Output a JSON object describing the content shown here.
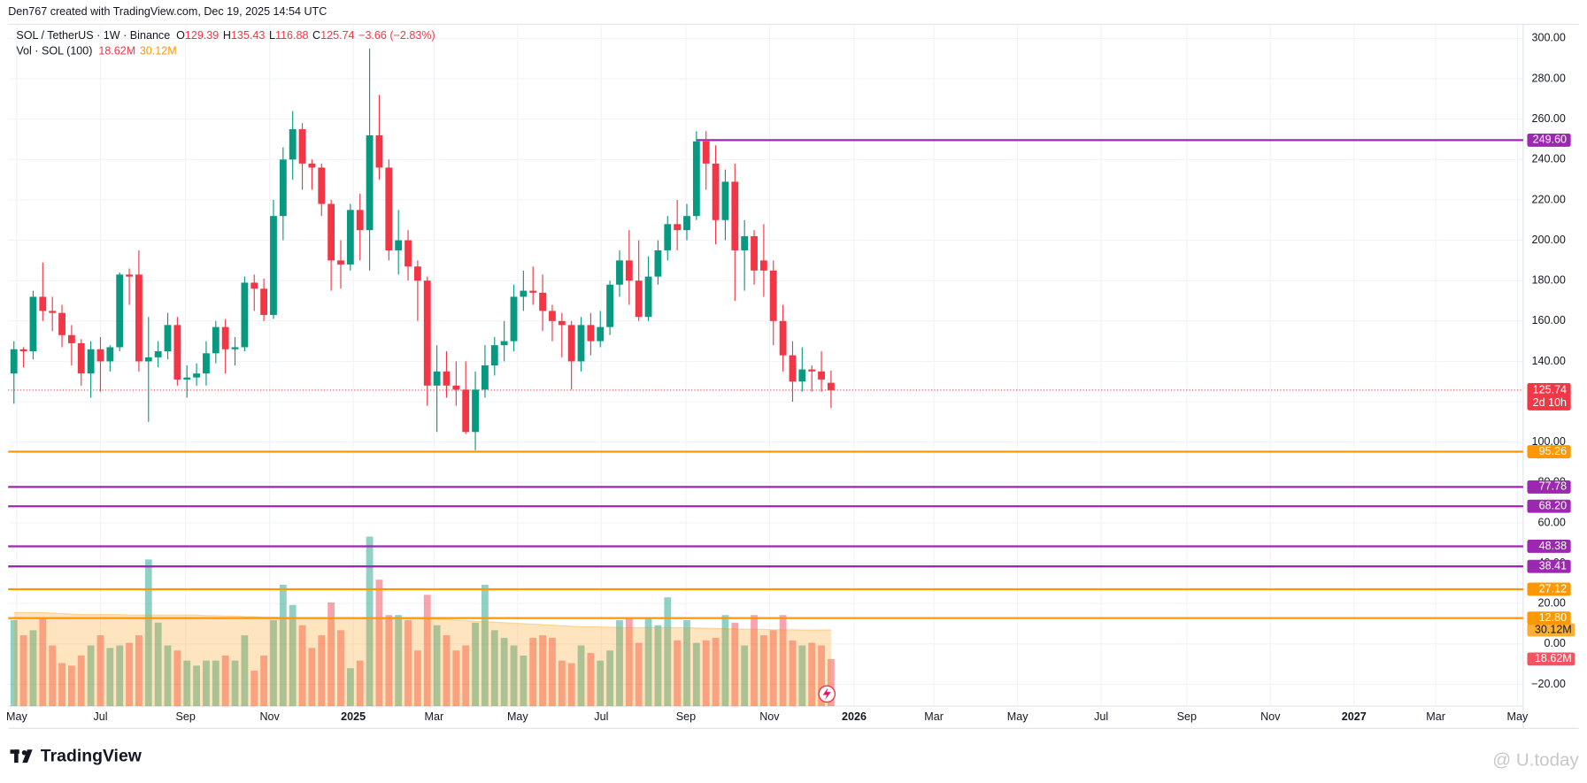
{
  "chart_data": {
    "type": "candlestick",
    "credit": "Den767 created with TradingView.com, Dec 19, 2025 14:54 UTC",
    "symbol": "SOL / TetherUS · 1W · Binance",
    "legend_keys": [
      "O",
      "H",
      "L",
      "C"
    ],
    "change": "−3.66 (−2.83%)",
    "volume_title": "Vol · SOL (100)",
    "volume_label": "18.62M",
    "volume_ma_label": "30.12M",
    "countdown": "2d 10h",
    "logo": "TradingView",
    "watermark": "@ U.today",
    "up_color": "#089981",
    "down_color": "#f23645",
    "ma_color": "#ff9800",
    "grid": true,
    "xlim": [
      -0.6,
      157
    ],
    "ylim": [
      -30.8,
      307
    ],
    "volume_ylim": [
      0,
      269.6
    ],
    "xticks": [
      {
        "value": 0.29,
        "label": "May"
      },
      {
        "value": 9,
        "label": "Jul"
      },
      {
        "value": 17.86,
        "label": "Sep"
      },
      {
        "value": 26.6,
        "label": "Nov"
      },
      {
        "value": 35.3,
        "label": "2025"
      },
      {
        "value": 43.7,
        "label": "Mar"
      },
      {
        "value": 52.4,
        "label": "May"
      },
      {
        "value": 61.1,
        "label": "Jul"
      },
      {
        "value": 69.9,
        "label": "Sep"
      },
      {
        "value": 78.6,
        "label": "Nov"
      },
      {
        "value": 87.4,
        "label": "2026"
      },
      {
        "value": 95.7,
        "label": "Mar"
      },
      {
        "value": 104.4,
        "label": "May"
      },
      {
        "value": 113.1,
        "label": "Jul"
      },
      {
        "value": 122,
        "label": "Sep"
      },
      {
        "value": 130.7,
        "label": "Nov"
      },
      {
        "value": 139.4,
        "label": "2027"
      },
      {
        "value": 147.9,
        "label": "Mar"
      },
      {
        "value": 156.4,
        "label": "May"
      }
    ],
    "yticks": [
      {
        "value": 300,
        "label": "300.00"
      },
      {
        "value": 280,
        "label": "280.00"
      },
      {
        "value": 260,
        "label": "260.00"
      },
      {
        "value": 240,
        "label": "240.00"
      },
      {
        "value": 220,
        "label": "220.00"
      },
      {
        "value": 200,
        "label": "200.00"
      },
      {
        "value": 180,
        "label": "180.00"
      },
      {
        "value": 160,
        "label": "160.00"
      },
      {
        "value": 140,
        "label": "140.00"
      },
      {
        "value": 120,
        "label": "120.00"
      },
      {
        "value": 100,
        "label": "100.00"
      },
      {
        "value": 80,
        "label": "80.00"
      },
      {
        "value": 60,
        "label": "60.00"
      },
      {
        "value": 40,
        "label": "40.00"
      },
      {
        "value": 20,
        "label": "20.00"
      },
      {
        "value": 0,
        "label": "0.00"
      },
      {
        "value": -20,
        "label": "−20.00"
      }
    ],
    "levels": [
      {
        "value": 249.6,
        "label": "249.60",
        "color": "#9c27b0",
        "start": 71
      },
      {
        "value": 95.26,
        "label": "95.26",
        "color": "#ff9800"
      },
      {
        "value": 77.78,
        "label": "77.78",
        "color": "#9c27b0"
      },
      {
        "value": 68.2,
        "label": "68.20",
        "color": "#9c27b0"
      },
      {
        "value": 48.38,
        "label": "48.38",
        "color": "#9c27b0"
      },
      {
        "value": 38.41,
        "label": "38.41",
        "color": "#9c27b0"
      },
      {
        "value": 27.12,
        "label": "27.12",
        "color": "#ff9800"
      },
      {
        "value": 12.8,
        "label": "12.80",
        "color": "#ff9800"
      }
    ],
    "ohlc": [
      [
        134,
        150,
        119,
        146
      ],
      [
        146,
        147,
        137,
        145
      ],
      [
        145,
        175,
        141,
        172
      ],
      [
        172,
        189,
        160,
        165
      ],
      [
        165,
        172,
        155,
        164
      ],
      [
        164,
        168,
        147,
        153
      ],
      [
        153,
        158,
        138,
        149
      ],
      [
        149,
        151,
        128,
        134
      ],
      [
        134,
        150,
        122,
        146
      ],
      [
        146,
        152,
        125,
        140
      ],
      [
        140,
        148,
        135,
        147
      ],
      [
        147,
        184,
        145,
        183
      ],
      [
        183,
        186,
        168,
        182
      ],
      [
        183,
        195,
        135,
        140
      ],
      [
        140,
        162,
        110,
        142
      ],
      [
        142,
        150,
        137,
        145
      ],
      [
        145,
        164,
        141,
        158
      ],
      [
        158,
        162,
        128,
        131
      ],
      [
        131,
        138,
        122,
        132
      ],
      [
        132,
        139,
        128,
        134
      ],
      [
        134,
        150,
        128,
        144
      ],
      [
        144,
        160,
        139,
        157
      ],
      [
        157,
        161,
        134,
        146
      ],
      [
        146,
        152,
        138,
        147
      ],
      [
        147,
        182,
        145,
        179
      ],
      [
        179,
        183,
        165,
        176
      ],
      [
        176,
        181,
        160,
        163
      ],
      [
        163,
        220,
        161,
        212
      ],
      [
        212,
        246,
        200,
        240
      ],
      [
        240,
        264,
        230,
        255
      ],
      [
        255,
        258,
        225,
        238
      ],
      [
        238,
        240,
        225,
        236
      ],
      [
        236,
        238,
        212,
        218
      ],
      [
        218,
        220,
        175,
        190
      ],
      [
        190,
        200,
        176,
        188
      ],
      [
        188,
        218,
        185,
        215
      ],
      [
        215,
        223,
        190,
        205
      ],
      [
        205,
        295,
        185,
        252
      ],
      [
        252,
        272,
        230,
        236
      ],
      [
        236,
        240,
        190,
        195
      ],
      [
        195,
        215,
        183,
        200
      ],
      [
        200,
        205,
        180,
        187
      ],
      [
        187,
        190,
        160,
        180
      ],
      [
        180,
        182,
        118,
        128
      ],
      [
        128,
        148,
        105,
        135
      ],
      [
        135,
        145,
        122,
        128
      ],
      [
        128,
        140,
        118,
        126
      ],
      [
        126,
        140,
        104,
        105
      ],
      [
        105,
        135,
        96,
        126
      ],
      [
        126,
        148,
        122,
        138
      ],
      [
        138,
        152,
        133,
        148
      ],
      [
        148,
        160,
        140,
        150
      ],
      [
        150,
        178,
        145,
        172
      ],
      [
        172,
        185,
        165,
        175
      ],
      [
        175,
        187,
        168,
        174
      ],
      [
        174,
        183,
        155,
        165
      ],
      [
        165,
        168,
        150,
        160
      ],
      [
        160,
        164,
        142,
        158
      ],
      [
        158,
        160,
        126,
        140
      ],
      [
        140,
        162,
        135,
        158
      ],
      [
        158,
        164,
        143,
        150
      ],
      [
        150,
        165,
        147,
        157
      ],
      [
        157,
        180,
        153,
        178
      ],
      [
        178,
        195,
        172,
        190
      ],
      [
        190,
        205,
        168,
        180
      ],
      [
        180,
        200,
        160,
        162
      ],
      [
        162,
        192,
        160,
        182
      ],
      [
        182,
        200,
        178,
        195
      ],
      [
        195,
        212,
        190,
        208
      ],
      [
        208,
        220,
        195,
        205
      ],
      [
        205,
        218,
        200,
        212
      ],
      [
        212,
        254,
        210,
        249
      ],
      [
        249,
        254,
        225,
        238
      ],
      [
        238,
        247,
        198,
        210
      ],
      [
        210,
        235,
        200,
        229
      ],
      [
        229,
        238,
        170,
        195
      ],
      [
        195,
        210,
        175,
        202
      ],
      [
        202,
        205,
        178,
        185
      ],
      [
        190,
        208,
        172,
        185
      ],
      [
        185,
        190,
        148,
        160
      ],
      [
        160,
        168,
        135,
        143
      ],
      [
        143,
        150,
        120,
        130
      ],
      [
        130,
        147,
        125,
        136
      ],
      [
        136,
        138,
        125,
        135
      ],
      [
        135,
        145,
        125,
        131
      ],
      [
        129.39,
        135.43,
        116.88,
        125.74
      ]
    ],
    "volume": [
      34,
      28,
      30,
      35,
      24,
      17,
      16,
      20,
      24,
      28,
      23,
      24,
      25,
      28,
      58,
      33,
      24,
      22,
      18,
      16,
      18,
      18,
      20,
      18,
      28,
      14,
      20,
      34,
      48,
      40,
      32,
      23,
      28,
      41,
      30,
      15,
      18,
      67,
      50,
      36,
      36,
      34,
      22,
      44,
      32,
      28,
      22,
      24,
      33,
      48,
      30,
      27,
      24,
      20,
      27,
      28,
      27,
      18,
      17,
      24,
      21,
      18,
      22,
      34,
      35,
      25,
      35,
      32,
      43,
      26,
      34,
      25,
      26,
      27,
      36,
      33,
      24,
      36,
      28,
      30,
      36,
      26,
      24,
      25,
      24,
      18.62
    ],
    "volume_ma": [
      37,
      37,
      37,
      37,
      36.8,
      36.6,
      36.4,
      36.2,
      36.2,
      36.2,
      36.2,
      36.2,
      36,
      36,
      36,
      36,
      36,
      36,
      36,
      36,
      35.8,
      35.8,
      35.6,
      35.6,
      35.4,
      35.4,
      35.2,
      35.2,
      35,
      35,
      35,
      35,
      35,
      35,
      35,
      35,
      35,
      35,
      35,
      34.8,
      34.8,
      34.6,
      34.6,
      34.4,
      34.4,
      34.2,
      34,
      33.8,
      33.6,
      33.4,
      33.2,
      33,
      32.8,
      32.6,
      32.4,
      32.2,
      32,
      31.8,
      31.6,
      31.4,
      31.4,
      31.3,
      31.2,
      31.1,
      31,
      31,
      31,
      31,
      31,
      31,
      31,
      30.9,
      30.8,
      30.7,
      30.6,
      30.5,
      30.4,
      30.3,
      30.3,
      30.2,
      30.2,
      30.2,
      30.1,
      30.1,
      30.12,
      30.12
    ]
  }
}
